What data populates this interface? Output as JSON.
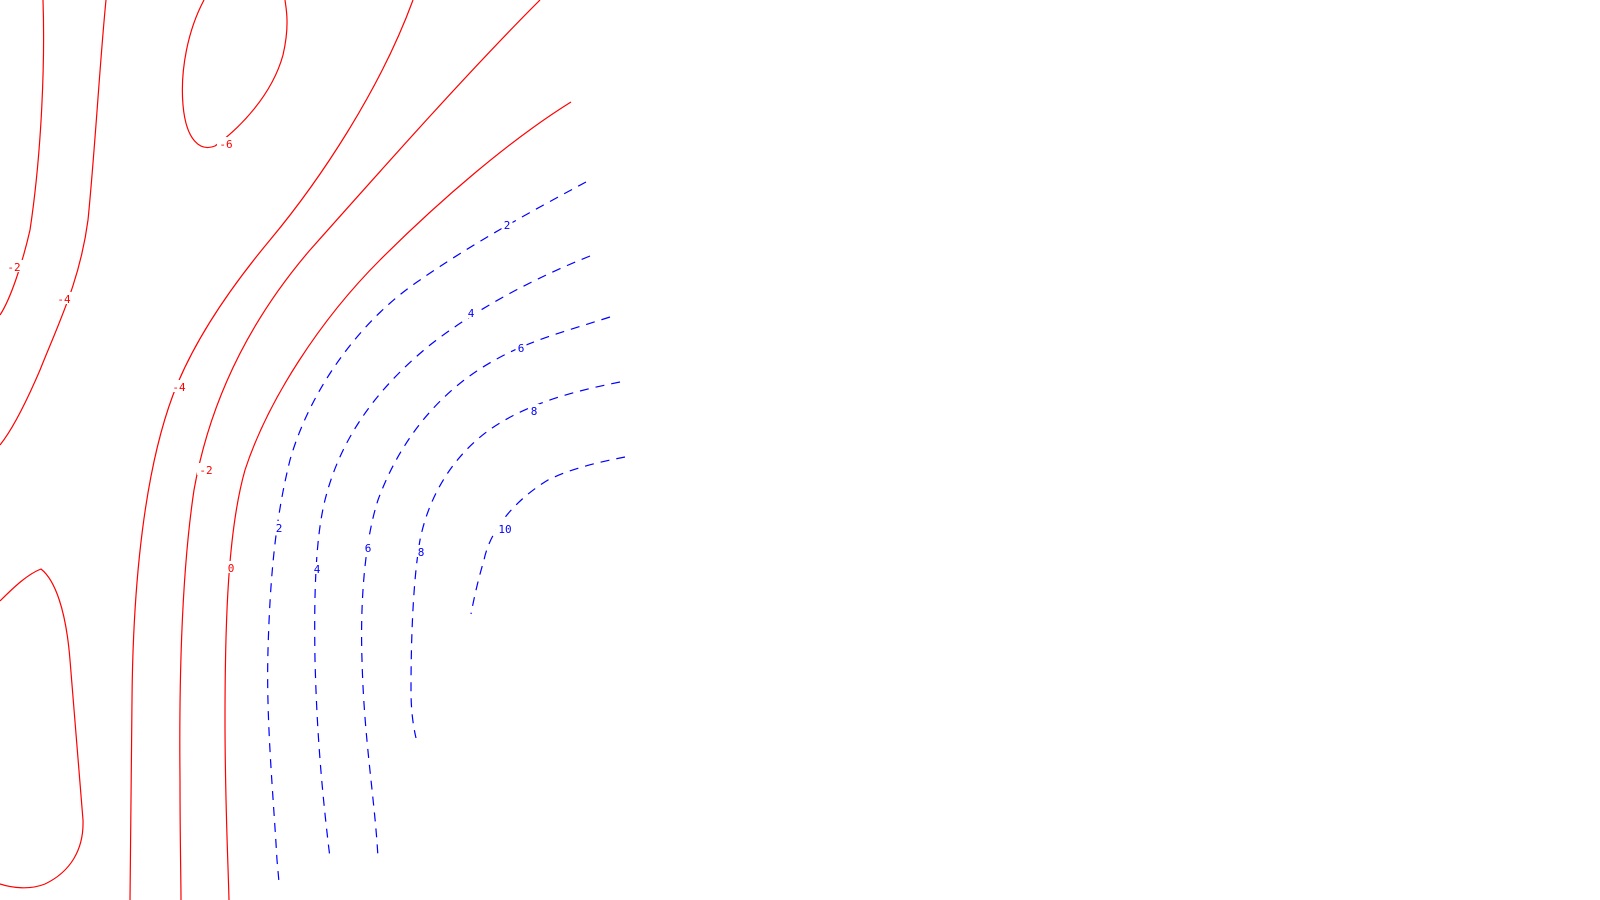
{
  "chart_data": {
    "type": "contour",
    "title": "",
    "xlabel": "",
    "ylabel": "",
    "grid": false,
    "colors": {
      "negative_and_zero": "#ff0000",
      "positive": "#0000ff"
    },
    "line_styles": {
      "negative_and_zero": "solid",
      "positive": "dashed"
    },
    "levels": [
      {
        "name": "contour-neg6-top",
        "value": -6,
        "label": "-6",
        "color": "#ff0000",
        "style": "solid"
      },
      {
        "name": "contour-neg2-left",
        "value": -2,
        "label": "-2",
        "color": "#ff0000",
        "style": "solid"
      },
      {
        "name": "contour-neg4-left",
        "value": -4,
        "label": "-4",
        "color": "#ff0000",
        "style": "solid"
      },
      {
        "name": "contour-neg4-mid",
        "value": -4,
        "label": "-4",
        "color": "#ff0000",
        "style": "solid"
      },
      {
        "name": "contour-neg2-mid",
        "value": -2,
        "label": "-2",
        "color": "#ff0000",
        "style": "solid"
      },
      {
        "name": "contour-zero",
        "value": 0,
        "label": "0",
        "color": "#ff0000",
        "style": "solid"
      },
      {
        "name": "contour-low-closed",
        "value": -4,
        "label": "",
        "color": "#ff0000",
        "style": "solid"
      },
      {
        "name": "contour-pos2",
        "value": 2,
        "label": "2",
        "color": "#0000ff",
        "style": "dashed"
      },
      {
        "name": "contour-pos4",
        "value": 4,
        "label": "4",
        "color": "#0000ff",
        "style": "dashed"
      },
      {
        "name": "contour-pos6",
        "value": 6,
        "label": "6",
        "color": "#0000ff",
        "style": "dashed"
      },
      {
        "name": "contour-pos8",
        "value": 8,
        "label": "8",
        "color": "#0000ff",
        "style": "dashed"
      },
      {
        "name": "contour-pos10",
        "value": 10,
        "label": "10",
        "color": "#0000ff",
        "style": "dashed"
      }
    ],
    "labels": [
      {
        "level": "contour-neg6-top",
        "text": "-6"
      },
      {
        "level": "contour-neg2-left",
        "text": "-2"
      },
      {
        "level": "contour-neg4-left",
        "text": "-4"
      },
      {
        "level": "contour-neg4-mid",
        "text": "-4"
      },
      {
        "level": "contour-neg2-mid",
        "text": "-2"
      },
      {
        "level": "contour-zero",
        "text": "0"
      },
      {
        "level": "contour-pos2",
        "text": "2"
      },
      {
        "level": "contour-pos2",
        "text": "2"
      },
      {
        "level": "contour-pos4",
        "text": "4"
      },
      {
        "level": "contour-pos4",
        "text": "4"
      },
      {
        "level": "contour-pos6",
        "text": "6"
      },
      {
        "level": "contour-pos6",
        "text": "6"
      },
      {
        "level": "contour-pos8",
        "text": "8"
      },
      {
        "level": "contour-pos8",
        "text": "8"
      },
      {
        "level": "contour-pos10",
        "text": "10"
      }
    ]
  }
}
